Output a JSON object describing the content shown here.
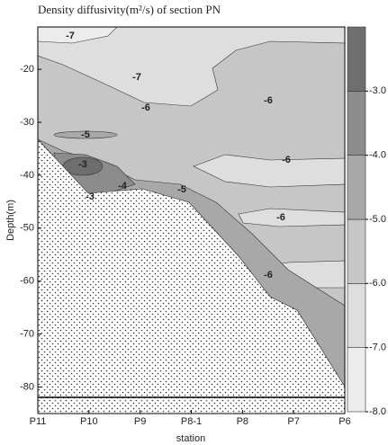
{
  "chart_data": {
    "type": "contour",
    "title": "Density diffusivity(m²/s) of section PN",
    "x_label": "station",
    "y_label": "Depth(m)",
    "categories": [
      "P11",
      "P10",
      "P9",
      "P8-1",
      "P8",
      "P7",
      "P6"
    ],
    "ylim": [
      -85,
      -12
    ],
    "yticks": [
      -20,
      -30,
      -40,
      -50,
      -60,
      -70,
      -80
    ],
    "contour_labels": [
      -7,
      -7,
      -6,
      -6,
      -5,
      -3,
      -3,
      -4,
      -5,
      -6,
      -6,
      -6
    ],
    "colorbar": {
      "lim": [
        -8,
        -2
      ],
      "ticks": [
        {
          "value": -8,
          "label": "-8.0"
        },
        {
          "value": -7,
          "label": "-7.0"
        },
        {
          "value": -6,
          "label": "-6.0"
        },
        {
          "value": -5,
          "label": "-5.0"
        },
        {
          "value": -4,
          "label": "-4.0"
        },
        {
          "value": -3,
          "label": "-3.0"
        }
      ],
      "colors": [
        "#ececec",
        "#dedede",
        "#c6c6c6",
        "#a8a8a8",
        "#8c8c8c",
        "#6e6e6e"
      ]
    }
  }
}
